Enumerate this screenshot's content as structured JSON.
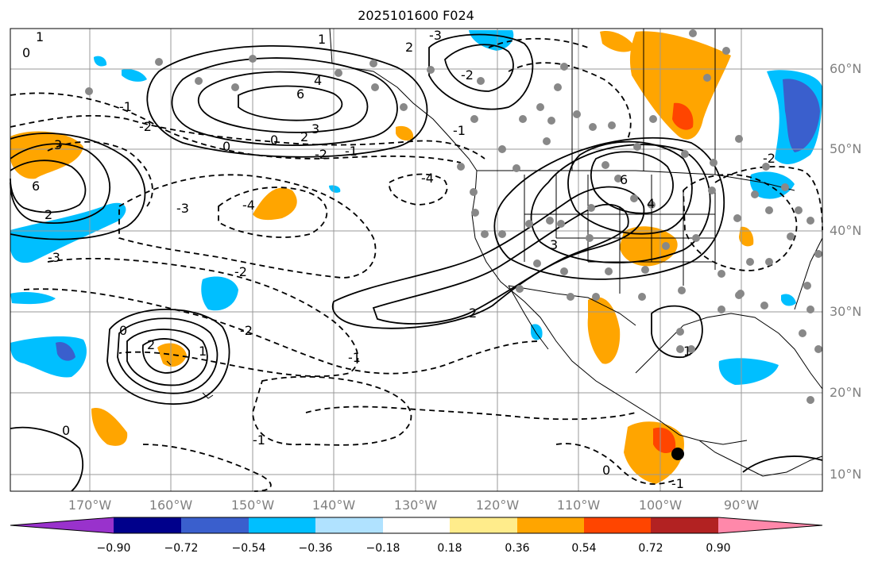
{
  "title": "2025101600 F024",
  "lat_labels": [
    "60°N",
    "50°N",
    "40°N",
    "30°N",
    "20°N",
    "10°N"
  ],
  "lon_labels": [
    "170°W",
    "160°W",
    "150°W",
    "140°W",
    "130°W",
    "120°W",
    "110°W",
    "100°W",
    "90°W"
  ],
  "colorbar": {
    "labels": [
      "−0.90",
      "−0.72",
      "−0.54",
      "−0.36",
      "−0.18",
      "0.18",
      "0.36",
      "0.54",
      "0.72",
      "0.90"
    ],
    "colors": [
      "#9932cc",
      "#00008b",
      "#3a5fcd",
      "#00bfff",
      "#b0e2ff",
      "#ffffff",
      "#ffec8b",
      "#ffa500",
      "#ff4500",
      "#b22222",
      "#ff88aa"
    ]
  },
  "contour_labels": [
    "6",
    "4",
    "3",
    "2",
    "1",
    "0",
    "-1",
    "-2",
    "-3",
    "-4",
    "6",
    "2",
    "3",
    "0",
    "1",
    "2",
    "-1",
    "-2",
    "-4",
    "-3",
    "-2",
    "0",
    "2",
    "1",
    "-1",
    "3",
    "6",
    "4",
    "-1",
    "-2",
    "0",
    "-2",
    "-1",
    "-2",
    "2",
    "0",
    "1",
    "-1",
    "0",
    "-3"
  ],
  "colors": {
    "land": "#000000",
    "grid": "#999999",
    "dot": "#888888",
    "marker": "#000000"
  }
}
